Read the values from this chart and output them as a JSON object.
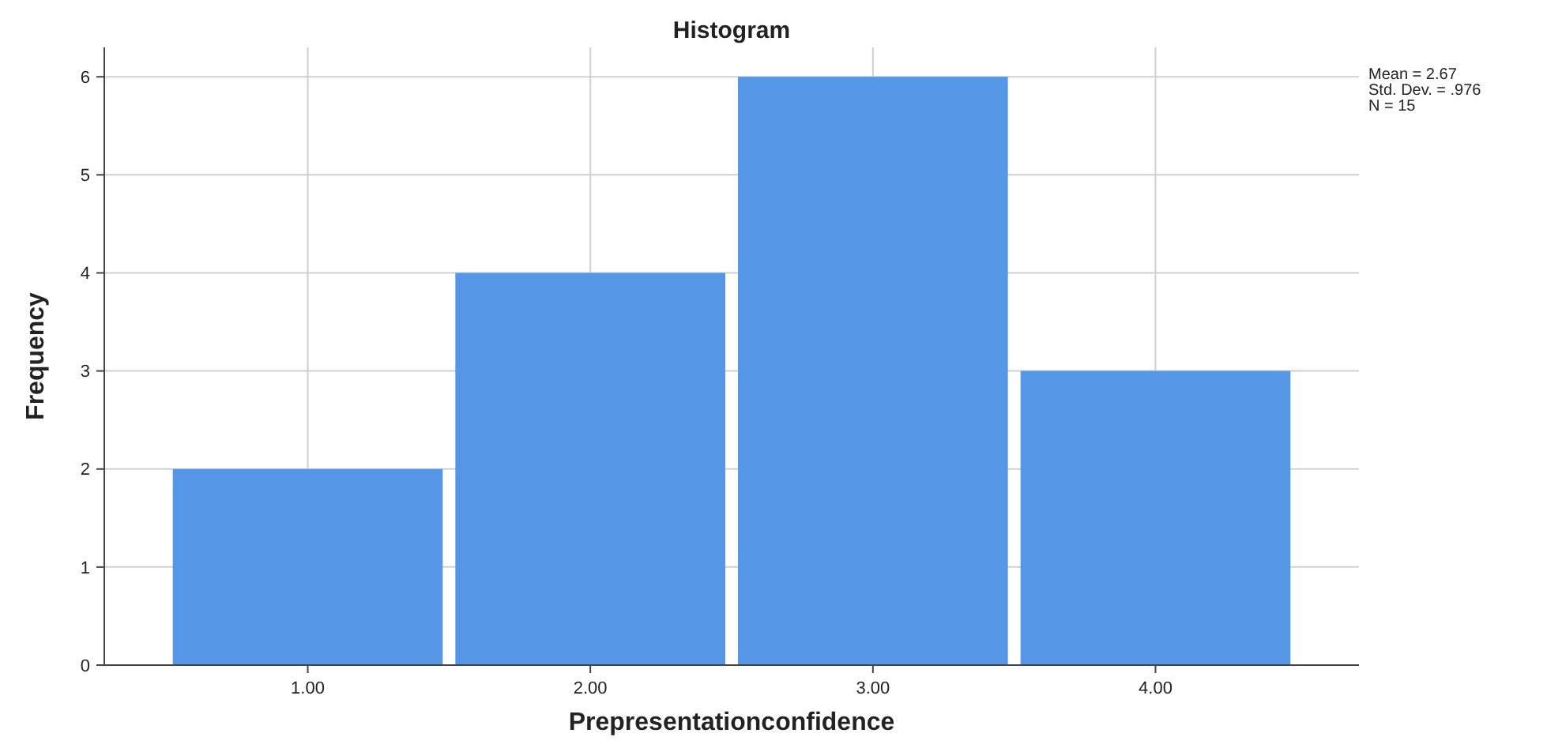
{
  "chart_data": {
    "type": "histogram",
    "title": "Histogram",
    "xlabel": "Prepresentationconfidence",
    "ylabel": "Frequency",
    "bins": [
      0.5,
      1.5,
      2.5,
      3.5,
      4.5
    ],
    "values": [
      2,
      4,
      6,
      3
    ],
    "color": "#5596e6",
    "xlim": [
      0.28,
      4.72
    ],
    "xticks": [
      {
        "value": 1,
        "label": "1.00"
      },
      {
        "value": 2,
        "label": "2.00"
      },
      {
        "value": 3,
        "label": "3.00"
      },
      {
        "value": 4,
        "label": "4.00"
      }
    ],
    "ylim": [
      0,
      6.3
    ],
    "yticks": [
      0,
      1,
      2,
      3,
      4,
      5,
      6
    ],
    "grid": true,
    "annotations": [
      "Mean = 2.67",
      "Std. Dev. = .976",
      "N = 15"
    ]
  }
}
